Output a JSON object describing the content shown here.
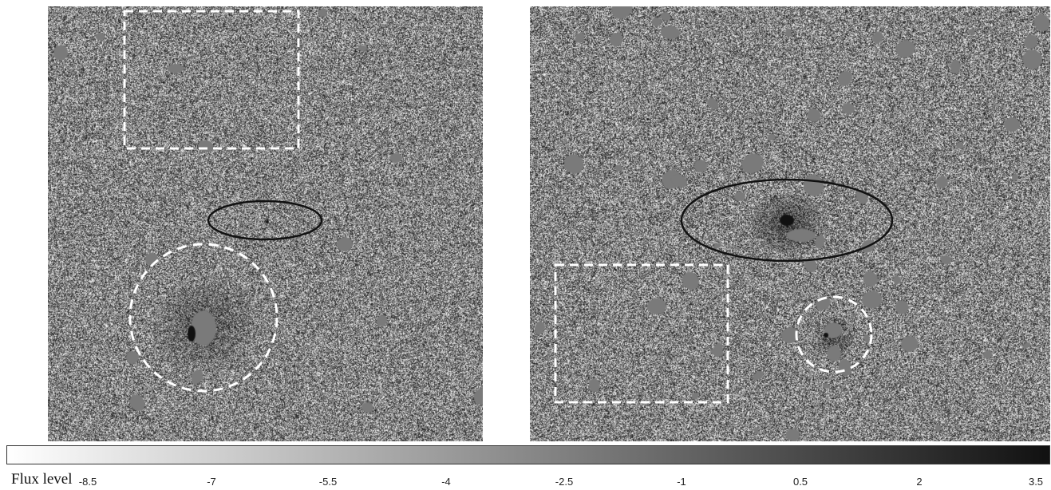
{
  "colorbar": {
    "title": "Flux level",
    "ticks": [
      "-8.5",
      "-7",
      "-5.5",
      "-4",
      "-2.5",
      "-1",
      "0.5",
      "2",
      "3.5"
    ],
    "gradient_start": "#ffffff",
    "gradient_end": "#111111"
  },
  "panels": [
    {
      "name": "left-panel",
      "markers": [
        "dashed-rectangle",
        "solid-ellipse",
        "dashed-circle"
      ]
    },
    {
      "name": "right-panel",
      "markers": [
        "solid-ellipse",
        "dashed-rectangle",
        "dashed-circle"
      ]
    }
  ],
  "colors": {
    "noise_mid": "#808080",
    "mask_patch": "#7a7a7a",
    "marker_dashed": "#ffffff",
    "marker_solid": "#111111"
  }
}
